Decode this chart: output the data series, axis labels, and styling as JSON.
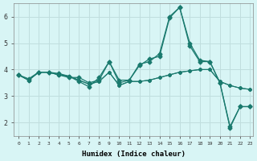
{
  "background_color": "#d8f5f5",
  "grid_color": "#c0dede",
  "line_color": "#1a7a6e",
  "xlabel": "Humidex (Indice chaleur)",
  "xlim": [
    -0.5,
    23.3
  ],
  "ylim": [
    1.5,
    6.5
  ],
  "yticks": [
    2,
    3,
    4,
    5,
    6
  ],
  "xticks": [
    0,
    1,
    2,
    3,
    4,
    5,
    6,
    7,
    8,
    9,
    10,
    11,
    12,
    13,
    14,
    15,
    16,
    17,
    18,
    19,
    20,
    21,
    22,
    23
  ],
  "series": [
    [
      3.8,
      3.6,
      3.9,
      3.9,
      3.8,
      3.7,
      3.7,
      3.5,
      3.6,
      4.3,
      3.6,
      3.6,
      4.15,
      4.4,
      4.5,
      5.95,
      6.35,
      5.0,
      4.35,
      4.3,
      3.5,
      1.8,
      2.6,
      2.6
    ],
    [
      3.8,
      3.65,
      3.9,
      3.9,
      3.85,
      3.75,
      3.55,
      3.35,
      3.7,
      4.3,
      3.5,
      3.6,
      4.2,
      4.3,
      4.6,
      6.0,
      6.35,
      4.9,
      4.3,
      4.3,
      3.5,
      1.85,
      2.6,
      2.6
    ],
    [
      3.8,
      3.6,
      3.9,
      3.9,
      3.8,
      3.75,
      3.6,
      3.45,
      3.55,
      3.9,
      3.4,
      3.55,
      3.55,
      3.6,
      3.7,
      3.8,
      3.9,
      3.95,
      4.0,
      4.0,
      3.55,
      3.4,
      3.3,
      3.25
    ],
    [
      3.8,
      3.6,
      3.9,
      3.9,
      3.8,
      3.75,
      3.6,
      3.45,
      3.55,
      3.9,
      3.4,
      3.55,
      3.55,
      3.6,
      3.7,
      3.8,
      3.9,
      3.95,
      4.0,
      4.0,
      3.55,
      3.4,
      3.3,
      3.25
    ]
  ]
}
